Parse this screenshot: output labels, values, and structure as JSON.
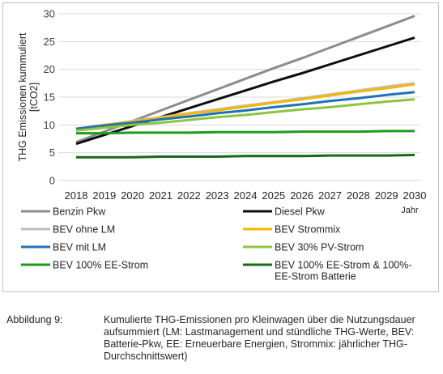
{
  "chart_data": {
    "type": "line",
    "ylabel": "THG Emissionen kummuliert [tCO2]",
    "xlabel": "Jahr",
    "ylim": [
      0,
      30
    ],
    "y_ticks": [
      0,
      5,
      10,
      15,
      20,
      25,
      30
    ],
    "x": [
      "2018",
      "2019",
      "2020",
      "2021",
      "2022",
      "2023",
      "2024",
      "2025",
      "2026",
      "2027",
      "2028",
      "2029",
      "2030"
    ],
    "grid": "horizontal",
    "legend_placement": "bottom",
    "series": [
      {
        "name": "Benzin Pkw",
        "color": "#8c8c8c",
        "values": [
          6.9,
          8.8,
          10.7,
          12.6,
          14.5,
          16.4,
          18.3,
          20.2,
          22.0,
          23.9,
          25.8,
          27.7,
          29.6
        ]
      },
      {
        "name": "Diesel Pkw",
        "color": "#0d0d0d",
        "values": [
          6.6,
          8.2,
          9.8,
          11.4,
          13.0,
          14.6,
          16.2,
          17.8,
          19.3,
          20.9,
          22.5,
          24.1,
          25.7
        ]
      },
      {
        "name": "BEV ohne LM",
        "color": "#bdbdbd",
        "values": [
          9.3,
          10.0,
          10.7,
          11.4,
          12.1,
          12.8,
          13.5,
          14.1,
          14.8,
          15.5,
          16.2,
          16.9,
          17.5
        ]
      },
      {
        "name": "BEV Strommix",
        "color": "#f2b900",
        "values": [
          9.3,
          10.0,
          10.6,
          11.3,
          12.0,
          12.6,
          13.3,
          14.0,
          14.6,
          15.3,
          16.0,
          16.6,
          17.3
        ]
      },
      {
        "name": "BEV mit LM",
        "color": "#1f72b8",
        "values": [
          9.3,
          9.9,
          10.4,
          11.0,
          11.5,
          12.1,
          12.6,
          13.2,
          13.7,
          14.3,
          14.8,
          15.4,
          15.9
        ]
      },
      {
        "name": "BEV 30% PV-Strom",
        "color": "#8cc63f",
        "values": [
          9.0,
          9.5,
          10.0,
          10.4,
          10.9,
          11.4,
          11.8,
          12.3,
          12.8,
          13.2,
          13.7,
          14.2,
          14.6
        ]
      },
      {
        "name": "BEV 100% EE-Strom",
        "color": "#1e9a1e",
        "values": [
          8.5,
          8.5,
          8.6,
          8.6,
          8.6,
          8.7,
          8.7,
          8.7,
          8.8,
          8.8,
          8.8,
          8.9,
          8.9
        ]
      },
      {
        "name": "BEV 100% EE-Strom & 100%-EE-Strom Batterie",
        "color": "#156b15",
        "values": [
          4.2,
          4.2,
          4.2,
          4.3,
          4.3,
          4.3,
          4.4,
          4.4,
          4.4,
          4.5,
          4.5,
          4.5,
          4.6
        ]
      }
    ]
  },
  "legend_items": [
    {
      "label": "Benzin Pkw",
      "color": "#8c8c8c"
    },
    {
      "label": "Diesel Pkw",
      "color": "#0d0d0d"
    },
    {
      "label": "BEV ohne LM",
      "color": "#bdbdbd"
    },
    {
      "label": "BEV Strommix",
      "color": "#f2b900"
    },
    {
      "label": "BEV mit LM",
      "color": "#1f72b8"
    },
    {
      "label": "BEV 30% PV-Strom",
      "color": "#8cc63f"
    },
    {
      "label": "BEV 100% EE-Strom",
      "color": "#1e9a1e"
    },
    {
      "label": "BEV 100% EE-Strom & 100%-EE-Strom Batterie",
      "color": "#156b15"
    }
  ],
  "caption": {
    "label": "Abbildung 9:",
    "text": "Kumulierte THG-Emissionen pro Kleinwagen über die Nutzungsdauer aufsummiert (LM: Lastmanagement und stündliche THG-Werte, BEV: Batterie-Pkw, EE: Erneuerbare Energien, Strommix: jährlicher THG-Durchschnittswert)"
  }
}
